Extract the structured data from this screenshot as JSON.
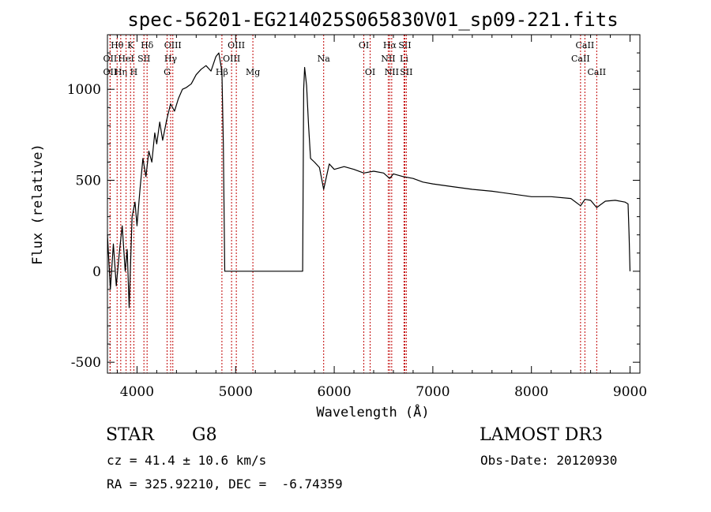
{
  "chart_data": {
    "type": "line",
    "title": "spec-56201-EG214025S065830V01_sp09-221.fits",
    "xlabel": "Wavelength (Å)",
    "ylabel": "Flux (relative)",
    "xlim": [
      3700,
      9100
    ],
    "ylim": [
      -560,
      1300
    ],
    "xticks": [
      4000,
      5000,
      6000,
      7000,
      8000,
      9000
    ],
    "yticks": [
      -500,
      0,
      500,
      1000
    ],
    "series": [
      {
        "name": "flux",
        "x": [
          3700,
          3730,
          3760,
          3790,
          3820,
          3850,
          3880,
          3900,
          3920,
          3950,
          3980,
          4000,
          4030,
          4060,
          4090,
          4120,
          4150,
          4180,
          4200,
          4230,
          4260,
          4300,
          4340,
          4380,
          4420,
          4460,
          4500,
          4550,
          4600,
          4650,
          4700,
          4750,
          4800,
          4830,
          4861,
          4875,
          4890,
          5000,
          5300,
          5600,
          5680,
          5690,
          5700,
          5720,
          5740,
          5760,
          5800,
          5850,
          5893,
          5950,
          6000,
          6100,
          6200,
          6300,
          6400,
          6500,
          6563,
          6600,
          6700,
          6800,
          6900,
          7000,
          7200,
          7400,
          7600,
          7800,
          8000,
          8200,
          8400,
          8498,
          8542,
          8600,
          8662,
          8750,
          8850,
          8950,
          8980,
          8990,
          9000
        ],
        "y": [
          200,
          -100,
          150,
          -80,
          100,
          250,
          0,
          120,
          -200,
          300,
          380,
          250,
          450,
          620,
          520,
          660,
          600,
          760,
          700,
          820,
          720,
          830,
          920,
          880,
          950,
          1000,
          1010,
          1030,
          1080,
          1110,
          1130,
          1100,
          1180,
          1200,
          1100,
          700,
          0,
          0,
          0,
          0,
          0,
          1000,
          1120,
          1020,
          800,
          620,
          600,
          570,
          450,
          590,
          560,
          575,
          560,
          540,
          550,
          540,
          510,
          535,
          520,
          510,
          490,
          480,
          465,
          450,
          440,
          425,
          410,
          410,
          400,
          360,
          395,
          390,
          350,
          385,
          390,
          380,
          370,
          200,
          0
        ]
      }
    ],
    "spectral_lines": [
      {
        "label": "Hθ",
        "x": 3798,
        "row": 1
      },
      {
        "label": "OII",
        "x": 3727,
        "row": 2
      },
      {
        "label": "OII",
        "x": 3727,
        "row": 3
      },
      {
        "label": "Hη",
        "x": 3835,
        "row": 3
      },
      {
        "label": "K",
        "x": 3934,
        "row": 1
      },
      {
        "label": "HeI",
        "x": 3889,
        "row": 2
      },
      {
        "label": "SII",
        "x": 4070,
        "row": 2
      },
      {
        "label": "H",
        "x": 3968,
        "row": 3
      },
      {
        "label": "Hδ",
        "x": 4102,
        "row": 1
      },
      {
        "label": "OIII",
        "x": 4363,
        "row": 1
      },
      {
        "label": "Hγ",
        "x": 4341,
        "row": 2
      },
      {
        "label": "G",
        "x": 4305,
        "row": 3
      },
      {
        "label": "OIII",
        "x": 5007,
        "row": 1
      },
      {
        "label": "OIII",
        "x": 4959,
        "row": 2
      },
      {
        "label": "Hβ",
        "x": 4861,
        "row": 3
      },
      {
        "label": "Mg",
        "x": 5175,
        "row": 3
      },
      {
        "label": "Na",
        "x": 5893,
        "row": 2
      },
      {
        "label": "OI",
        "x": 6300,
        "row": 1
      },
      {
        "label": "OI",
        "x": 6364,
        "row": 3
      },
      {
        "label": "Hα",
        "x": 6563,
        "row": 1
      },
      {
        "label": "SII",
        "x": 6716,
        "row": 1
      },
      {
        "label": "NII",
        "x": 6548,
        "row": 2
      },
      {
        "label": "Li",
        "x": 6708,
        "row": 2
      },
      {
        "label": "NII",
        "x": 6583,
        "row": 3
      },
      {
        "label": "SII",
        "x": 6731,
        "row": 3
      },
      {
        "label": "CaII",
        "x": 8542,
        "row": 1
      },
      {
        "label": "CaII",
        "x": 8498,
        "row": 2
      },
      {
        "label": "CaII",
        "x": 8662,
        "row": 3
      }
    ]
  },
  "info": {
    "object_class": "STAR",
    "subclass": "G8",
    "survey": "LAMOST DR3",
    "redshift": "cz = 41.4 ± 10.6 km/s",
    "obs_date": "Obs-Date: 20120930",
    "coords": "RA = 325.92210, DEC =  -6.74359"
  }
}
